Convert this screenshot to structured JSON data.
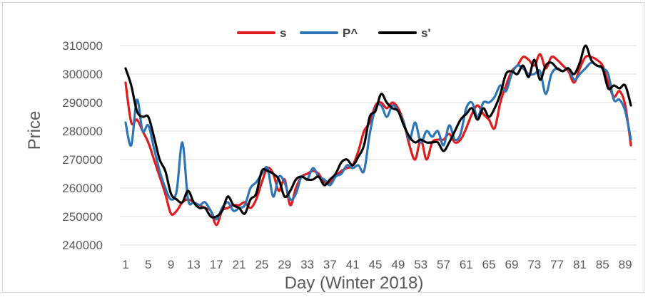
{
  "chart_data": {
    "type": "line",
    "title": "",
    "xlabel": "Day (Winter 2018)",
    "ylabel": "Price",
    "ylim": [
      240000,
      310000
    ],
    "yticks": [
      240000,
      250000,
      260000,
      270000,
      280000,
      290000,
      300000,
      310000
    ],
    "ytick_labels": [
      "240000",
      "250000",
      "260000",
      "270000",
      "280000",
      "290000",
      "300000",
      "310000"
    ],
    "xticks": [
      1,
      5,
      9,
      13,
      17,
      21,
      25,
      29,
      33,
      37,
      41,
      45,
      49,
      53,
      57,
      61,
      65,
      69,
      73,
      77,
      81,
      85,
      89
    ],
    "xtick_labels": [
      "1",
      "5",
      "9",
      "13",
      "17",
      "21",
      "25",
      "29",
      "33",
      "37",
      "41",
      "45",
      "49",
      "53",
      "57",
      "61",
      "65",
      "69",
      "73",
      "77",
      "81",
      "85",
      "89"
    ],
    "xlim": [
      0,
      91
    ],
    "grid": "horizontal",
    "legend": "top",
    "series": [
      {
        "name": "s",
        "color": "#e31a1c",
        "x": [
          1,
          2,
          3,
          4,
          5,
          6,
          7,
          8,
          9,
          10,
          11,
          12,
          13,
          14,
          15,
          16,
          17,
          18,
          19,
          20,
          21,
          22,
          23,
          24,
          25,
          26,
          27,
          28,
          29,
          30,
          31,
          32,
          33,
          34,
          35,
          36,
          37,
          38,
          39,
          40,
          41,
          42,
          43,
          44,
          45,
          46,
          47,
          48,
          49,
          50,
          51,
          52,
          53,
          54,
          55,
          56,
          57,
          58,
          59,
          60,
          61,
          62,
          63,
          64,
          65,
          66,
          67,
          68,
          69,
          70,
          71,
          72,
          73,
          74,
          75,
          76,
          77,
          78,
          79,
          80,
          81,
          82,
          83,
          84,
          85,
          86,
          87,
          88,
          89,
          90
        ],
        "values": [
          297000,
          283000,
          284000,
          280000,
          276000,
          270000,
          264000,
          258000,
          251000,
          252000,
          255000,
          256000,
          255000,
          254000,
          253000,
          252000,
          247000,
          252000,
          253000,
          254000,
          254000,
          255000,
          253000,
          256000,
          262000,
          267000,
          265000,
          259000,
          263000,
          254000,
          260000,
          264000,
          265000,
          266000,
          265000,
          262000,
          262000,
          264000,
          266000,
          267000,
          268000,
          273000,
          280000,
          283000,
          289000,
          290000,
          288000,
          290000,
          288000,
          283000,
          275000,
          270000,
          277000,
          270000,
          276000,
          277000,
          277000,
          279000,
          276000,
          277000,
          281000,
          286000,
          289000,
          286000,
          284000,
          281000,
          290000,
          296000,
          301000,
          303000,
          306000,
          305000,
          303000,
          307000,
          302000,
          306000,
          305000,
          303000,
          301000,
          297000,
          302000,
          306000,
          306000,
          305000,
          303000,
          297000,
          292000,
          294000,
          289000,
          275000
        ]
      },
      {
        "name": "P^",
        "color": "#2e75b6",
        "x": [
          1,
          2,
          3,
          4,
          5,
          6,
          7,
          8,
          9,
          10,
          11,
          12,
          13,
          14,
          15,
          16,
          17,
          18,
          19,
          20,
          21,
          22,
          23,
          24,
          25,
          26,
          27,
          28,
          29,
          30,
          31,
          32,
          33,
          34,
          35,
          36,
          37,
          38,
          39,
          40,
          41,
          42,
          43,
          44,
          45,
          46,
          47,
          48,
          49,
          50,
          51,
          52,
          53,
          54,
          55,
          56,
          57,
          58,
          59,
          60,
          61,
          62,
          63,
          64,
          65,
          66,
          67,
          68,
          69,
          70,
          71,
          72,
          73,
          74,
          75,
          76,
          77,
          78,
          79,
          80,
          81,
          82,
          83,
          84,
          85,
          86,
          87,
          88,
          89,
          90
        ],
        "values": [
          283000,
          275000,
          291000,
          280000,
          282000,
          274000,
          266000,
          260000,
          256000,
          259000,
          276000,
          256000,
          255000,
          254000,
          255000,
          252000,
          249000,
          253000,
          255000,
          252000,
          253000,
          254000,
          260000,
          262000,
          265000,
          267000,
          257000,
          264000,
          262000,
          256000,
          258000,
          264000,
          263000,
          267000,
          264000,
          263000,
          261000,
          264000,
          265000,
          268000,
          267000,
          268000,
          266000,
          279000,
          288000,
          289000,
          285000,
          289000,
          287000,
          283000,
          277000,
          283000,
          276000,
          280000,
          278000,
          280000,
          275000,
          282000,
          277000,
          279000,
          288000,
          290000,
          285000,
          290000,
          290000,
          292000,
          296000,
          294000,
          300000,
          303000,
          302000,
          300000,
          300000,
          301000,
          293000,
          300000,
          302000,
          301000,
          302000,
          298000,
          300000,
          302000,
          304000,
          303000,
          302000,
          300000,
          291000,
          291000,
          287000,
          277000
        ]
      },
      {
        "name": "s'",
        "color": "#000000",
        "x": [
          1,
          2,
          3,
          4,
          5,
          6,
          7,
          8,
          9,
          10,
          11,
          12,
          13,
          14,
          15,
          16,
          17,
          18,
          19,
          20,
          21,
          22,
          23,
          24,
          25,
          26,
          27,
          28,
          29,
          30,
          31,
          32,
          33,
          34,
          35,
          36,
          37,
          38,
          39,
          40,
          41,
          42,
          43,
          44,
          45,
          46,
          47,
          48,
          49,
          50,
          51,
          52,
          53,
          54,
          55,
          56,
          57,
          58,
          59,
          60,
          61,
          62,
          63,
          64,
          65,
          66,
          67,
          68,
          69,
          70,
          71,
          72,
          73,
          74,
          75,
          76,
          77,
          78,
          79,
          80,
          81,
          82,
          83,
          84,
          85,
          86,
          87,
          88,
          89,
          90
        ],
        "values": [
          302000,
          296000,
          287000,
          285000,
          285000,
          278000,
          270000,
          266000,
          258000,
          256000,
          255000,
          259000,
          255000,
          253000,
          253000,
          250000,
          250000,
          252000,
          257000,
          254000,
          253000,
          251000,
          256000,
          258000,
          266000,
          266000,
          265000,
          263000,
          257000,
          259000,
          263000,
          264000,
          263000,
          263000,
          264000,
          261000,
          263000,
          265000,
          269000,
          270000,
          268000,
          271000,
          275000,
          285000,
          287000,
          293000,
          290000,
          288000,
          287000,
          282000,
          278000,
          276000,
          277000,
          276000,
          276000,
          276000,
          273000,
          276000,
          280000,
          284000,
          286000,
          288000,
          284000,
          288000,
          285000,
          288000,
          293000,
          300000,
          301000,
          300000,
          303000,
          299000,
          305000,
          298000,
          303000,
          304000,
          302000,
          301000,
          302000,
          300000,
          304000,
          310000,
          305000,
          303000,
          302000,
          295000,
          296000,
          295000,
          296000,
          289000
        ]
      }
    ]
  }
}
